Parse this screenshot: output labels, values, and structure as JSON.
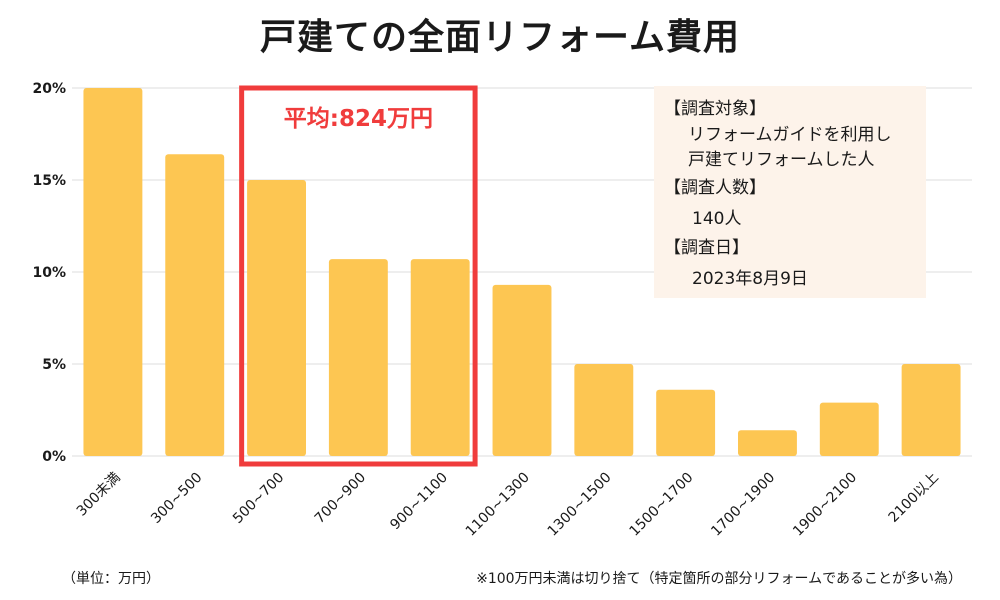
{
  "title": "戸建ての全面リフォーム費用",
  "highlight": {
    "label": "平均:824万円",
    "color": "#f03c3c",
    "start_category": "500~700",
    "end_category": "900~1100"
  },
  "info": {
    "heading1": "【調査対象】",
    "line1": "リフォームガイドを利用し",
    "line2": "戸建てリフォームした人",
    "heading2": "【調査人数】",
    "count": "140人",
    "heading3": "【調査日】",
    "date": "2023年8月9日"
  },
  "footer": {
    "unit_note": "（単位：万円）",
    "footnote": "※100万円未満は切り捨て（特定箇所の部分リフォームであることが多い為）"
  },
  "colors": {
    "bar": "#fdc652",
    "grid": "#dcdcdc",
    "info_bg": "#fdf3ea"
  },
  "chart_data": {
    "type": "bar",
    "title": "戸建ての全面リフォーム費用",
    "xlabel": "",
    "ylabel": "",
    "categories": [
      "300未満",
      "300~500",
      "500~700",
      "700~900",
      "900~1100",
      "1100~1300",
      "1300~1500",
      "1500~1700",
      "1700~1900",
      "1900~2100",
      "2100以上"
    ],
    "values": [
      20.0,
      16.4,
      15.0,
      10.7,
      10.7,
      9.3,
      5.0,
      3.6,
      1.4,
      2.9,
      5.0
    ],
    "ylim": [
      0,
      20
    ],
    "yticks": [
      0,
      5,
      10,
      15,
      20
    ],
    "ytick_labels": [
      "0%",
      "5%",
      "10%",
      "15%",
      "20%"
    ],
    "grid": true
  }
}
